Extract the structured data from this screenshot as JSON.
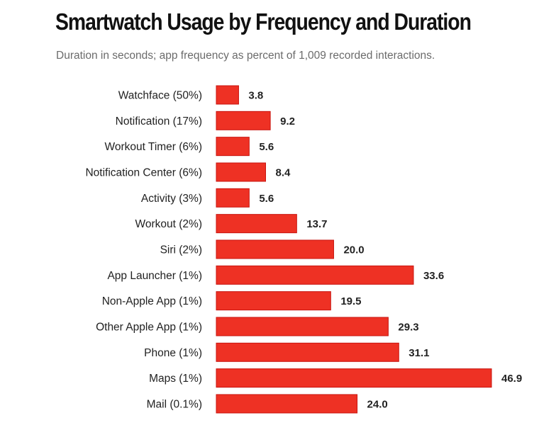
{
  "chart_data": {
    "type": "bar",
    "orientation": "horizontal",
    "title": "Smartwatch Usage by Frequency and Duration",
    "subtitle": "Duration in seconds; app frequency as percent of 1,009 recorded interactions.",
    "categories": [
      "Watchface (50%)",
      "Notification (17%)",
      "Workout Timer (6%)",
      "Notification Center (6%)",
      "Activity (3%)",
      "Workout (2%)",
      "Siri (2%)",
      "App Launcher (1%)",
      "Non-Apple App (1%)",
      "Other Apple App (1%)",
      "Phone (1%)",
      "Maps (1%)",
      "Mail (0.1%)"
    ],
    "values": [
      3.8,
      9.2,
      5.6,
      8.4,
      5.6,
      13.7,
      20.0,
      33.6,
      19.5,
      29.3,
      31.1,
      46.9,
      24.0
    ],
    "value_labels": [
      "3.8",
      "9.2",
      "5.6",
      "8.4",
      "5.6",
      "13.7",
      "20.0",
      "33.6",
      "19.5",
      "29.3",
      "31.1",
      "46.9",
      "24.0"
    ],
    "xlabel": "",
    "ylabel": "",
    "xlim": [
      0,
      46.9
    ],
    "grid": false,
    "legend": "none",
    "colors": {
      "bar": "#ee3124",
      "bar_border": "#c8140f"
    }
  }
}
